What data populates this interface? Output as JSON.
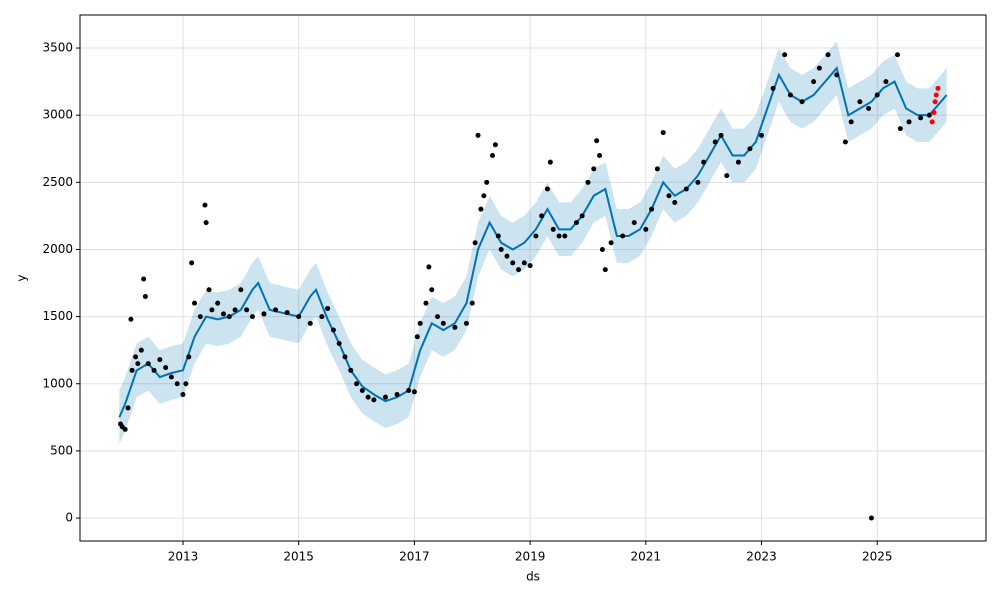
{
  "chart_data": {
    "type": "forecast",
    "x_label": "ds",
    "y_label": "y",
    "xlim": [
      2011.22,
      2026.88
    ],
    "ylim": [
      -171,
      3746
    ],
    "xticks": [
      2013,
      2015,
      2017,
      2019,
      2021,
      2023,
      2025
    ],
    "yticks": [
      0,
      500,
      1000,
      1500,
      2000,
      2500,
      3000,
      3500
    ],
    "grid": true,
    "series": [
      {
        "type": "band",
        "color": "#0072B2",
        "x": [
          2011.9,
          2012.0,
          2012.2,
          2012.4,
          2012.6,
          2012.8,
          2013.0,
          2013.2,
          2013.4,
          2013.6,
          2013.8,
          2014.0,
          2014.2,
          2014.3,
          2014.5,
          2014.8,
          2015.0,
          2015.2,
          2015.3,
          2015.5,
          2015.7,
          2015.9,
          2016.1,
          2016.3,
          2016.5,
          2016.7,
          2016.9,
          2017.1,
          2017.3,
          2017.5,
          2017.7,
          2017.9,
          2018.1,
          2018.3,
          2018.5,
          2018.7,
          2018.9,
          2019.1,
          2019.3,
          2019.5,
          2019.7,
          2019.9,
          2020.1,
          2020.3,
          2020.5,
          2020.7,
          2020.9,
          2021.1,
          2021.3,
          2021.5,
          2021.7,
          2021.9,
          2022.1,
          2022.3,
          2022.5,
          2022.7,
          2022.9,
          2023.1,
          2023.3,
          2023.5,
          2023.7,
          2023.9,
          2024.1,
          2024.3,
          2024.5,
          2024.7,
          2024.9,
          2025.1,
          2025.3,
          2025.5,
          2025.7,
          2025.9,
          2026.1,
          2026.2
        ],
        "upper": [
          950,
          1050,
          1300,
          1350,
          1250,
          1280,
          1300,
          1550,
          1700,
          1680,
          1700,
          1750,
          1900,
          1950,
          1750,
          1720,
          1700,
          1850,
          1900,
          1680,
          1500,
          1300,
          1180,
          1120,
          1070,
          1100,
          1150,
          1450,
          1650,
          1600,
          1650,
          1800,
          2200,
          2400,
          2250,
          2200,
          2250,
          2350,
          2500,
          2350,
          2350,
          2450,
          2600,
          2650,
          2300,
          2300,
          2350,
          2500,
          2700,
          2600,
          2650,
          2750,
          2900,
          3050,
          2900,
          2900,
          3000,
          3250,
          3500,
          3350,
          3300,
          3350,
          3450,
          3550,
          3200,
          3250,
          3300,
          3400,
          3450,
          3250,
          3200,
          3200,
          3300,
          3350
        ],
        "lower": [
          550,
          650,
          900,
          950,
          850,
          880,
          900,
          1150,
          1300,
          1280,
          1300,
          1350,
          1500,
          1550,
          1350,
          1320,
          1300,
          1450,
          1500,
          1280,
          1100,
          900,
          780,
          720,
          670,
          700,
          750,
          1050,
          1250,
          1200,
          1250,
          1400,
          1800,
          2000,
          1850,
          1800,
          1850,
          1950,
          2100,
          1950,
          1950,
          2050,
          2200,
          2250,
          1900,
          1900,
          1950,
          2100,
          2300,
          2200,
          2250,
          2350,
          2500,
          2650,
          2500,
          2500,
          2600,
          2850,
          3100,
          2950,
          2900,
          2950,
          3050,
          3150,
          2800,
          2850,
          2900,
          3000,
          3050,
          2850,
          2800,
          2800,
          2900,
          2950
        ]
      },
      {
        "type": "line",
        "color": "#0072B2",
        "x": [
          2011.9,
          2012.0,
          2012.2,
          2012.4,
          2012.6,
          2012.8,
          2013.0,
          2013.2,
          2013.4,
          2013.6,
          2013.8,
          2014.0,
          2014.2,
          2014.3,
          2014.5,
          2014.8,
          2015.0,
          2015.2,
          2015.3,
          2015.5,
          2015.7,
          2015.9,
          2016.1,
          2016.3,
          2016.5,
          2016.7,
          2016.9,
          2017.1,
          2017.3,
          2017.5,
          2017.7,
          2017.9,
          2018.1,
          2018.3,
          2018.5,
          2018.7,
          2018.9,
          2019.1,
          2019.3,
          2019.5,
          2019.7,
          2019.9,
          2020.1,
          2020.3,
          2020.5,
          2020.7,
          2020.9,
          2021.1,
          2021.3,
          2021.5,
          2021.7,
          2021.9,
          2022.1,
          2022.3,
          2022.5,
          2022.7,
          2022.9,
          2023.1,
          2023.3,
          2023.5,
          2023.7,
          2023.9,
          2024.1,
          2024.3,
          2024.5,
          2024.7,
          2024.9,
          2025.1,
          2025.3,
          2025.5,
          2025.7,
          2025.9,
          2026.1,
          2026.2
        ],
        "values": [
          750,
          850,
          1100,
          1150,
          1050,
          1080,
          1100,
          1350,
          1500,
          1480,
          1500,
          1550,
          1700,
          1750,
          1550,
          1520,
          1500,
          1650,
          1700,
          1480,
          1300,
          1100,
          980,
          920,
          870,
          900,
          950,
          1250,
          1450,
          1400,
          1450,
          1600,
          2000,
          2200,
          2050,
          2000,
          2050,
          2150,
          2300,
          2150,
          2150,
          2250,
          2400,
          2450,
          2100,
          2100,
          2150,
          2300,
          2500,
          2400,
          2450,
          2550,
          2700,
          2850,
          2700,
          2700,
          2800,
          3050,
          3300,
          3150,
          3100,
          3150,
          3250,
          3350,
          3000,
          3050,
          3100,
          3200,
          3250,
          3050,
          3000,
          3000,
          3100,
          3150
        ]
      },
      {
        "type": "scatter",
        "color": "#000000",
        "x": [
          2011.92,
          2011.95,
          2012.0,
          2012.05,
          2012.1,
          2012.12,
          2012.18,
          2012.22,
          2012.28,
          2012.32,
          2012.35,
          2012.4,
          2012.5,
          2012.6,
          2012.7,
          2012.8,
          2012.9,
          2013.0,
          2013.05,
          2013.1,
          2013.15,
          2013.2,
          2013.3,
          2013.38,
          2013.4,
          2013.45,
          2013.5,
          2013.6,
          2013.7,
          2013.8,
          2013.9,
          2014.0,
          2014.1,
          2014.2,
          2014.4,
          2014.6,
          2014.8,
          2015.0,
          2015.2,
          2015.4,
          2015.5,
          2015.6,
          2015.7,
          2015.8,
          2015.9,
          2016.0,
          2016.1,
          2016.2,
          2016.3,
          2016.5,
          2016.7,
          2016.9,
          2017.0,
          2017.05,
          2017.1,
          2017.2,
          2017.25,
          2017.3,
          2017.4,
          2017.5,
          2017.7,
          2017.9,
          2018.0,
          2018.05,
          2018.1,
          2018.15,
          2018.2,
          2018.25,
          2018.35,
          2018.4,
          2018.45,
          2018.5,
          2018.6,
          2018.7,
          2018.8,
          2018.9,
          2019.0,
          2019.1,
          2019.2,
          2019.3,
          2019.35,
          2019.4,
          2019.5,
          2019.6,
          2019.8,
          2019.9,
          2020.0,
          2020.1,
          2020.15,
          2020.2,
          2020.25,
          2020.3,
          2020.4,
          2020.6,
          2020.8,
          2021.0,
          2021.1,
          2021.2,
          2021.3,
          2021.4,
          2021.5,
          2021.7,
          2021.9,
          2022.0,
          2022.2,
          2022.3,
          2022.4,
          2022.6,
          2022.8,
          2023.0,
          2023.2,
          2023.4,
          2023.5,
          2023.7,
          2023.9,
          2024.0,
          2024.15,
          2024.3,
          2024.45,
          2024.55,
          2024.7,
          2024.85,
          2024.9,
          2025.0,
          2025.15,
          2025.35,
          2025.4,
          2025.55,
          2025.75,
          2025.9
        ],
        "values": [
          700,
          680,
          660,
          820,
          1480,
          1100,
          1200,
          1150,
          1250,
          1780,
          1650,
          1150,
          1100,
          1180,
          1120,
          1050,
          1000,
          920,
          1000,
          1200,
          1900,
          1600,
          1500,
          2330,
          2200,
          1700,
          1550,
          1600,
          1520,
          1500,
          1550,
          1700,
          1550,
          1500,
          1520,
          1550,
          1530,
          1500,
          1450,
          1500,
          1560,
          1400,
          1300,
          1200,
          1100,
          1000,
          950,
          900,
          880,
          900,
          920,
          950,
          940,
          1350,
          1450,
          1600,
          1870,
          1700,
          1500,
          1450,
          1420,
          1450,
          1600,
          2050,
          2850,
          2300,
          2400,
          2500,
          2700,
          2780,
          2100,
          2000,
          1950,
          1900,
          1850,
          1900,
          1880,
          2100,
          2250,
          2450,
          2650,
          2150,
          2100,
          2100,
          2200,
          2250,
          2500,
          2600,
          2810,
          2700,
          2000,
          1850,
          2050,
          2100,
          2200,
          2150,
          2300,
          2600,
          2870,
          2400,
          2350,
          2450,
          2500,
          2650,
          2800,
          2850,
          2550,
          2650,
          2750,
          2850,
          3200,
          3450,
          3150,
          3100,
          3250,
          3350,
          3450,
          3300,
          2800,
          2950,
          3100,
          3050,
          0,
          3150,
          3250,
          3450,
          2900,
          2950,
          2980,
          3000
        ]
      },
      {
        "type": "scatter",
        "color": "#ff0000",
        "x": [
          2025.95,
          2025.98,
          2026.0,
          2026.02,
          2026.05
        ],
        "values": [
          2950,
          3020,
          3100,
          3150,
          3200
        ]
      }
    ]
  }
}
